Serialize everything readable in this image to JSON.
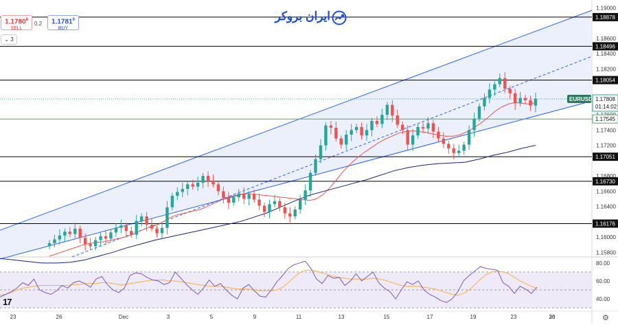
{
  "header": {
    "sell": {
      "price": "1.1780",
      "sup": "8",
      "label": "SELL"
    },
    "buy": {
      "price": "1.1781",
      "sup": "0",
      "label": "BUY"
    },
    "spread": "0.2",
    "interval": "3",
    "logo_text": "ایران بروکر"
  },
  "colors": {
    "candle_up": "#26a69a",
    "candle_down": "#ef5350",
    "channel_line": "#2962ff",
    "channel_fill": "#e8edfb",
    "ma_red": "#ef5350",
    "ma_navy": "#1a237e",
    "rsi_line": "#7e57c2",
    "rsi_signal": "#f5b041",
    "rsi_fill": "#efeaf8",
    "hline": "#000000",
    "price_label_bg": "#111111",
    "current_label_bg": "#2a7a5c",
    "green_hline": "#4caf50"
  },
  "chart_data": [
    {
      "type": "candlestick",
      "symbol": "EURUSD",
      "timeframe": "3",
      "ylim": [
        1.1574,
        1.1903
      ],
      "y_ticks": [
        "1.19000",
        "1.18600",
        "1.18400",
        "1.18200",
        "1.17800",
        "1.17600",
        "1.17400",
        "1.17200",
        "1.16800",
        "1.16600",
        "1.16400",
        "1.16200",
        "1.16000",
        "1.15800"
      ],
      "x_ticks": [
        "23",
        "26",
        "Dec",
        "3",
        "5",
        "9",
        "11",
        "13",
        "15",
        "17",
        "19",
        "23",
        "26",
        "30"
      ],
      "horizontal_levels": [
        "1.18878",
        "1.18496",
        "1.18054",
        "1.17051",
        "1.16730",
        "1.16176"
      ],
      "green_level": "1.17545",
      "current_price": "1.17808",
      "countdown": "01:14:02",
      "trend_channel": {
        "upper": [
          {
            "x": "22",
            "y": 1.1575
          },
          {
            "x": "30",
            "y": 1.1903
          }
        ],
        "lower": [
          {
            "x": "1",
            "y": 1.1532
          },
          {
            "x": "29",
            "y": 1.1775
          }
        ],
        "midline": [
          {
            "x": "24",
            "y": 1.1575
          },
          {
            "x": "30",
            "y": 1.1843
          }
        ]
      },
      "closes": [
        1.1592,
        1.1597,
        1.1602,
        1.1607,
        1.1604,
        1.1611,
        1.1599,
        1.1591,
        1.1588,
        1.1596,
        1.1601,
        1.1598,
        1.1606,
        1.1612,
        1.1615,
        1.1608,
        1.1603,
        1.1621,
        1.1627,
        1.1616,
        1.1611,
        1.1605,
        1.1612,
        1.1639,
        1.1654,
        1.1659,
        1.1663,
        1.1669,
        1.1666,
        1.1671,
        1.168,
        1.1674,
        1.1669,
        1.166,
        1.1651,
        1.1645,
        1.1652,
        1.1657,
        1.165,
        1.1656,
        1.1649,
        1.1641,
        1.1633,
        1.1643,
        1.1647,
        1.1639,
        1.1631,
        1.1627,
        1.1636,
        1.1649,
        1.1661,
        1.1684,
        1.1702,
        1.172,
        1.1746,
        1.1743,
        1.1729,
        1.1721,
        1.1734,
        1.174,
        1.1744,
        1.1733,
        1.174,
        1.1752,
        1.1748,
        1.176,
        1.1773,
        1.1759,
        1.1747,
        1.174,
        1.1721,
        1.1733,
        1.1744,
        1.1742,
        1.1749,
        1.1738,
        1.1729,
        1.1722,
        1.1716,
        1.171,
        1.1713,
        1.1721,
        1.174,
        1.1755,
        1.1771,
        1.1782,
        1.1793,
        1.18,
        1.1808,
        1.1794,
        1.1788,
        1.1775,
        1.1782,
        1.1779,
        1.1772,
        1.1781
      ],
      "ma_red": [
        1.1575,
        1.1578,
        1.1581,
        1.1584,
        1.1587,
        1.159,
        1.1592,
        1.1593,
        1.1594,
        1.1596,
        1.1598,
        1.16,
        1.1603,
        1.1607,
        1.1611,
        1.1614,
        1.1617,
        1.1622,
        1.1627,
        1.163,
        1.1632,
        1.1634,
        1.1636,
        1.164,
        1.1644,
        1.1648,
        1.1652,
        1.1654,
        1.1656,
        1.1657,
        1.1656,
        1.1655,
        1.1654,
        1.1653,
        1.1652,
        1.1651,
        1.165,
        1.1649,
        1.1648,
        1.165,
        1.1656,
        1.1665,
        1.1676,
        1.1687,
        1.1696,
        1.1704,
        1.1711,
        1.1717,
        1.1723,
        1.1728,
        1.1732,
        1.1736,
        1.1738,
        1.1739,
        1.1738,
        1.1737,
        1.1735,
        1.1733,
        1.1732,
        1.1732,
        1.1734,
        1.1738,
        1.1743,
        1.1749,
        1.1756,
        1.1764,
        1.177,
        1.1774,
        1.1776,
        1.1775,
        1.1774,
        1.1776
      ],
      "ma_navy": [
        1.1572,
        1.157,
        1.1568,
        1.1566,
        1.1566,
        1.1567,
        1.157,
        1.1575,
        1.158,
        1.1586,
        1.1591,
        1.1596,
        1.16,
        1.1604,
        1.1608,
        1.1612,
        1.1616,
        1.162,
        1.1626,
        1.1632,
        1.164,
        1.1648,
        1.1655,
        1.166,
        1.1665,
        1.167,
        1.1675,
        1.1681,
        1.1687,
        1.1691,
        1.1694,
        1.1696,
        1.1697,
        1.1698,
        1.1702,
        1.1707,
        1.1711,
        1.1716,
        1.172
      ]
    },
    {
      "type": "line",
      "name": "RSI",
      "ylim": [
        27,
        86
      ],
      "y_ticks": [
        "80.00",
        "60.00",
        "40.00"
      ],
      "bands": [
        30,
        50,
        70
      ],
      "values": [
        42,
        45,
        48,
        52,
        58,
        55,
        62,
        50,
        47,
        45,
        49,
        55,
        52,
        58,
        60,
        57,
        53,
        62,
        65,
        56,
        50,
        47,
        52,
        66,
        69,
        68,
        64,
        61,
        60,
        56,
        58,
        70,
        63,
        56,
        50,
        45,
        52,
        61,
        54,
        57,
        50,
        44,
        40,
        52,
        56,
        49,
        43,
        42,
        50,
        59,
        66,
        74,
        78,
        80,
        82,
        74,
        62,
        57,
        66,
        63,
        64,
        55,
        60,
        68,
        60,
        65,
        70,
        58,
        52,
        48,
        40,
        50,
        59,
        56,
        60,
        50,
        45,
        42,
        38,
        36,
        40,
        48,
        60,
        66,
        71,
        76,
        74,
        73,
        72,
        58,
        54,
        46,
        54,
        51,
        46,
        53
      ],
      "signal": [
        44,
        45,
        47,
        50,
        52,
        53,
        54,
        55,
        55,
        55,
        55,
        55,
        55,
        56,
        56,
        57,
        57,
        57,
        58,
        58,
        57,
        56,
        56,
        57,
        58,
        59,
        60,
        61,
        61,
        61,
        60,
        60,
        59,
        58,
        57,
        56,
        55,
        54,
        54,
        54,
        53,
        52,
        51,
        51,
        51,
        50,
        49,
        49,
        49,
        50,
        53,
        58,
        64,
        69,
        72,
        72,
        71,
        69,
        67,
        65,
        64,
        63,
        62,
        62,
        62,
        62,
        63,
        62,
        61,
        59,
        57,
        55,
        54,
        54,
        54,
        53,
        52,
        51,
        49,
        47,
        45,
        44,
        46,
        50,
        56,
        62,
        67,
        70,
        71,
        70,
        68,
        64,
        60,
        57,
        54,
        52
      ]
    }
  ],
  "annotations": {
    "symbol_label": "EURUSD",
    "price_axis": "1.17808"
  }
}
